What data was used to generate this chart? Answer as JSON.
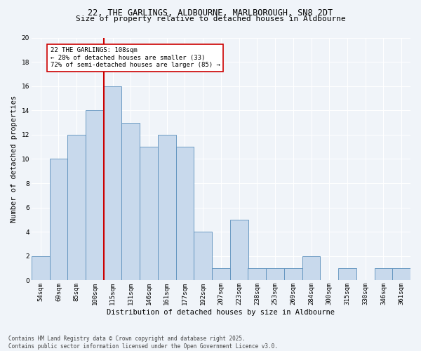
{
  "title_line1": "22, THE GARLINGS, ALDBOURNE, MARLBOROUGH, SN8 2DT",
  "title_line2": "Size of property relative to detached houses in Aldbourne",
  "xlabel": "Distribution of detached houses by size in Aldbourne",
  "ylabel": "Number of detached properties",
  "categories": [
    "54sqm",
    "69sqm",
    "85sqm",
    "100sqm",
    "115sqm",
    "131sqm",
    "146sqm",
    "161sqm",
    "177sqm",
    "192sqm",
    "207sqm",
    "223sqm",
    "238sqm",
    "253sqm",
    "269sqm",
    "284sqm",
    "300sqm",
    "315sqm",
    "330sqm",
    "346sqm",
    "361sqm"
  ],
  "values": [
    2,
    10,
    12,
    14,
    16,
    13,
    11,
    12,
    11,
    4,
    1,
    5,
    1,
    1,
    1,
    2,
    0,
    1,
    0,
    1,
    1
  ],
  "bar_color": "#c8d9ec",
  "bar_edge_color": "#5b8fbc",
  "vline_index": 3,
  "vline_color": "#cc0000",
  "annotation_text": "22 THE GARLINGS: 108sqm\n← 28% of detached houses are smaller (33)\n72% of semi-detached houses are larger (85) →",
  "annotation_box_color": "#ffffff",
  "annotation_box_edge": "#cc0000",
  "background_color": "#f0f4f9",
  "grid_color": "#ffffff",
  "footnote": "Contains HM Land Registry data © Crown copyright and database right 2025.\nContains public sector information licensed under the Open Government Licence v3.0.",
  "ylim": [
    0,
    20
  ],
  "yticks": [
    0,
    2,
    4,
    6,
    8,
    10,
    12,
    14,
    16,
    18,
    20
  ],
  "title_fontsize": 8.5,
  "subtitle_fontsize": 8,
  "ylabel_fontsize": 7.5,
  "xlabel_fontsize": 7.5,
  "tick_fontsize": 6.5,
  "annot_fontsize": 6.5,
  "footnote_fontsize": 5.5
}
